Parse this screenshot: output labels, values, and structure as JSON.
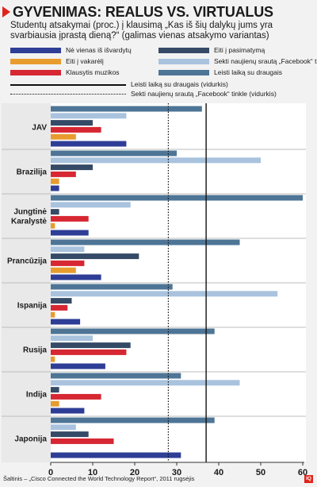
{
  "header": {
    "title": "GYVENIMAS: REALUS VS. VIRTUALUS",
    "subtitle": "Studentų atsakymai (proc.) į klausimą „Kas iš šių dalykų jums yra svarbiausia įprastą dieną?“ (galimas vienas atsakymo variantas)"
  },
  "legend": {
    "items": [
      {
        "label": "Nė vienas iš išvardytų",
        "color": "#2e3e96"
      },
      {
        "label": "Eiti į pasimatymą",
        "color": "#354a66"
      },
      {
        "label": "Eiti į vakarėlį",
        "color": "#e89c2f"
      },
      {
        "label": "Sekti naujienų srautą „Facebook“ tinkle",
        "color": "#a9c3de"
      },
      {
        "label": "Klausytis muzikos",
        "color": "#d62732"
      },
      {
        "label": "Leisti laiką su draugais",
        "color": "#4e7596"
      }
    ],
    "avg_friends_label": "Leisti laiką su draugais (vidurkis)",
    "avg_facebook_label": "Sekti naujienų srautą „Facebook“ tinkle (vidurkis)"
  },
  "chart_data": {
    "type": "bar",
    "orientation": "horizontal",
    "categories": [
      "JAV",
      "Brazilija",
      "Jungtinė Karalystė",
      "Prancūzija",
      "Ispanija",
      "Rusija",
      "Indija",
      "Japonija"
    ],
    "series": [
      {
        "name": "Leisti laiką su draugais",
        "color": "#4e7596",
        "values": [
          36,
          30,
          60,
          45,
          29,
          39,
          31,
          39
        ]
      },
      {
        "name": "Sekti naujienų srautą „Facebook“ tinkle",
        "color": "#a9c3de",
        "values": [
          18,
          50,
          19,
          8,
          54,
          10,
          45,
          6
        ]
      },
      {
        "name": "Eiti į pasimatymą",
        "color": "#354a66",
        "values": [
          10,
          10,
          2,
          21,
          5,
          19,
          2,
          9
        ]
      },
      {
        "name": "Klausytis muzikos",
        "color": "#d62732",
        "values": [
          12,
          6,
          9,
          8,
          4,
          18,
          12,
          15
        ]
      },
      {
        "name": "Eiti į vakarėlį",
        "color": "#e89c2f",
        "values": [
          6,
          2,
          1,
          6,
          1,
          1,
          2,
          0
        ]
      },
      {
        "name": "Nė vienas iš išvardytų",
        "color": "#2e3e96",
        "values": [
          18,
          2,
          9,
          12,
          7,
          13,
          8,
          31
        ]
      }
    ],
    "reference_lines": [
      {
        "name": "Leisti laiką su draugais (vidurkis)",
        "value": 37,
        "style": "solid"
      },
      {
        "name": "Sekti naujienų srautą „Facebook“ tinkle (vidurkis)",
        "value": 28,
        "style": "dotted"
      }
    ],
    "xlim": [
      0,
      60
    ],
    "xticks": [
      0,
      10,
      20,
      30,
      40,
      50,
      60
    ],
    "grid": false,
    "legend_position": "top"
  },
  "footer": {
    "source": "Šaltinis – „Cisco Connected the World Technology Report“, 2011 rugsėjis",
    "logo": "IQ"
  }
}
